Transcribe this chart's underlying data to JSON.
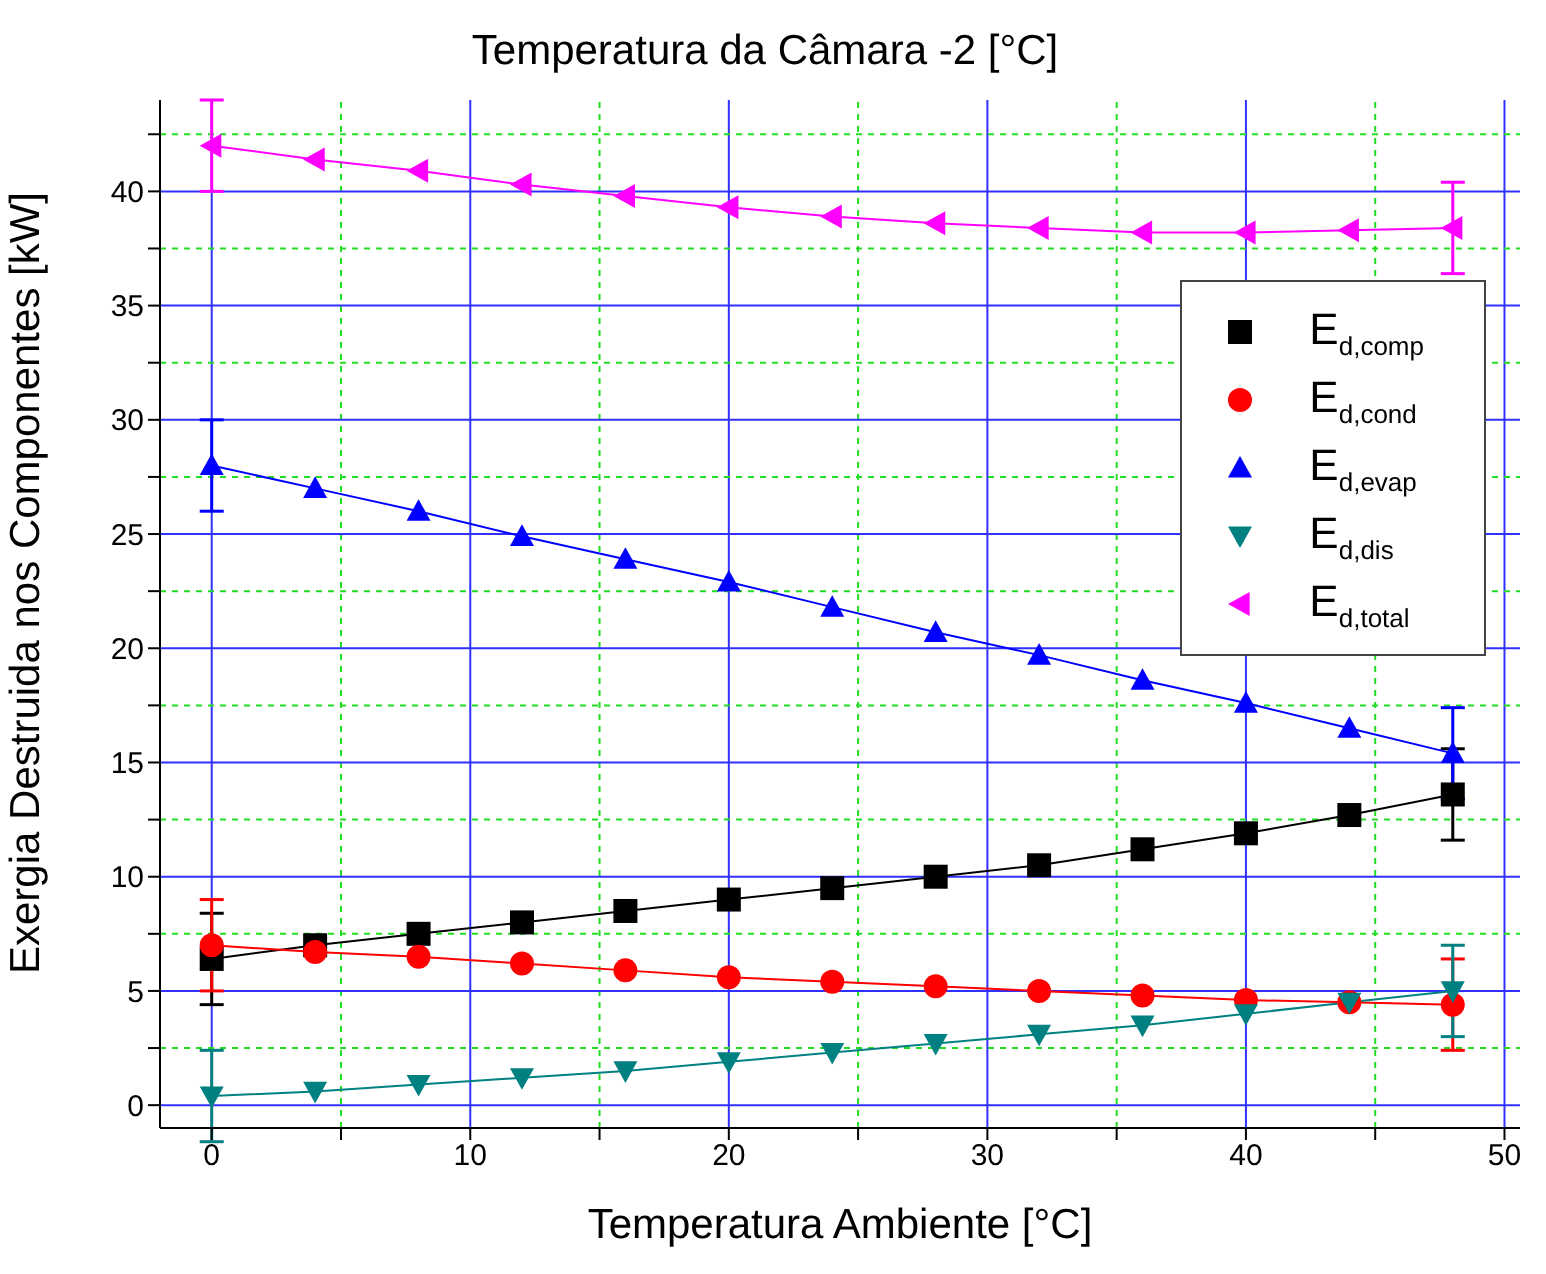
{
  "chart_data": {
    "type": "line",
    "title": "Temperatura da Câmara -2 [°C]",
    "xlabel": "Temperatura Ambiente [°C]",
    "ylabel": "Exergia Destruida nos Componentes [kW]",
    "x": [
      0,
      4,
      8,
      12,
      16,
      20,
      24,
      28,
      32,
      36,
      40,
      44,
      48
    ],
    "series": [
      {
        "name": "E$_{d,comp}$",
        "color": "#000000",
        "marker": "square",
        "values": [
          6.4,
          7.0,
          7.5,
          8.0,
          8.5,
          9.0,
          9.5,
          10.0,
          10.5,
          11.2,
          11.9,
          12.7,
          13.6
        ],
        "errors": [
          2,
          null,
          null,
          null,
          null,
          null,
          null,
          null,
          null,
          null,
          null,
          null,
          2
        ]
      },
      {
        "name": "E$_{d,cond}$",
        "color": "#ff0000",
        "marker": "circle",
        "values": [
          7.0,
          6.7,
          6.5,
          6.2,
          5.9,
          5.6,
          5.4,
          5.2,
          5.0,
          4.8,
          4.6,
          4.5,
          4.4
        ],
        "errors": [
          2,
          null,
          null,
          null,
          null,
          null,
          null,
          null,
          null,
          null,
          null,
          null,
          2
        ]
      },
      {
        "name": "E$_{d,evap}$",
        "color": "#0000ff",
        "marker": "triangle",
        "values": [
          28,
          27,
          26,
          24.9,
          23.9,
          22.9,
          21.8,
          20.7,
          19.7,
          18.6,
          17.6,
          16.5,
          15.4
        ],
        "errors": [
          2,
          null,
          null,
          null,
          null,
          null,
          null,
          null,
          null,
          null,
          null,
          null,
          2
        ]
      },
      {
        "name": "E$_{d,dis}$",
        "color": "#008080",
        "marker": "triangle-down",
        "values": [
          0.4,
          0.6,
          0.9,
          1.2,
          1.5,
          1.9,
          2.3,
          2.7,
          3.1,
          3.5,
          4.0,
          4.5,
          5.0
        ],
        "errors": [
          2,
          null,
          null,
          null,
          null,
          null,
          null,
          null,
          null,
          null,
          null,
          null,
          2
        ]
      },
      {
        "name": "E$_{d,total}$",
        "color": "#ff00ff",
        "marker": "triangle-left",
        "values": [
          42,
          41.4,
          40.9,
          40.3,
          39.8,
          39.3,
          38.9,
          38.6,
          38.4,
          38.2,
          38.2,
          38.3,
          38.4
        ],
        "errors": [
          2,
          null,
          null,
          null,
          null,
          null,
          null,
          null,
          null,
          null,
          null,
          null,
          2
        ]
      }
    ],
    "xlim": [
      -2,
      50.6
    ],
    "xticks": [
      0,
      {
        "value": 5,
        "label": null
      },
      10,
      {
        "value": 15,
        "label": null
      },
      20,
      {
        "value": 25,
        "label": null
      },
      30,
      {
        "value": 35,
        "label": null
      },
      40,
      {
        "value": 45,
        "label": null
      },
      50
    ],
    "ylim": [
      -1,
      44
    ],
    "yticks": [
      0,
      {
        "value": 2.5,
        "label": null
      },
      5,
      {
        "value": 7.5,
        "label": null
      },
      10,
      {
        "value": 12.5,
        "label": null
      },
      15,
      {
        "value": 17.5,
        "label": null
      },
      20,
      {
        "value": 22.5,
        "label": null
      },
      25,
      {
        "value": 27.5,
        "label": null
      },
      30,
      {
        "value": 32.5,
        "label": null
      },
      35,
      {
        "value": 37.5,
        "label": null
      },
      40,
      {
        "value": 42.5,
        "label": null
      }
    ],
    "grid": true,
    "legend": "top right",
    "line_style": "solid"
  }
}
